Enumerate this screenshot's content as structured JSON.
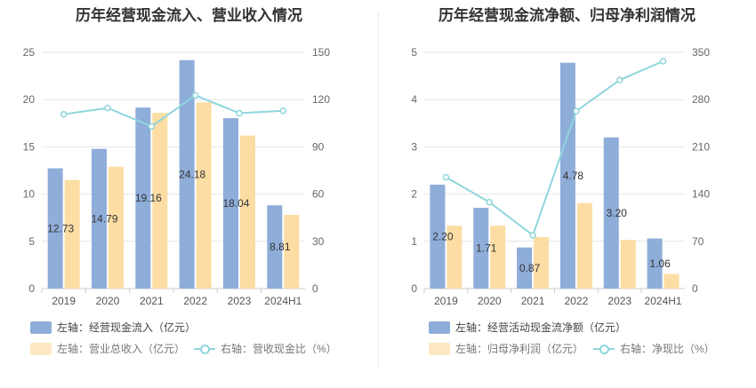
{
  "chart_data": [
    {
      "type": "bar",
      "title": "历年经营现金流入、营业收入情况",
      "categories": [
        "2019",
        "2020",
        "2021",
        "2022",
        "2023",
        "2024H1"
      ],
      "y_left": {
        "range": [
          0,
          25
        ],
        "ticks": [
          "0",
          "5",
          "10",
          "15",
          "20",
          "25"
        ]
      },
      "y_right": {
        "range": [
          0,
          150
        ],
        "ticks": [
          "0",
          "30",
          "60",
          "90",
          "120",
          "150"
        ]
      },
      "series": [
        {
          "name": "左轴：经营现金流入（亿元）",
          "type": "bar",
          "axis": "left",
          "color": "#8eadd9",
          "values": [
            12.73,
            14.79,
            19.16,
            24.18,
            18.04,
            8.81
          ],
          "labels": [
            "12.73",
            "14.79",
            "19.16",
            "24.18",
            "18.04",
            "8.81"
          ]
        },
        {
          "name": "左轴：营业总收入（亿元）",
          "type": "bar",
          "axis": "left",
          "color": "#fcdda3",
          "values": [
            11.5,
            12.9,
            18.6,
            19.7,
            16.2,
            7.8
          ]
        },
        {
          "name": "右轴：营收现金比（%）",
          "type": "line",
          "axis": "right",
          "color": "#8fd6dc",
          "values": [
            110.7,
            114.7,
            103.0,
            122.7,
            111.4,
            112.9
          ]
        }
      ],
      "grid": true,
      "legend": "bottom"
    },
    {
      "type": "bar",
      "title": "历年经营现金流净额、归母净利润情况",
      "categories": [
        "2019",
        "2020",
        "2021",
        "2022",
        "2023",
        "2024H1"
      ],
      "y_left": {
        "range": [
          0,
          5
        ],
        "ticks": [
          "0",
          "1",
          "2",
          "3",
          "4",
          "5"
        ]
      },
      "y_right": {
        "range": [
          0,
          350
        ],
        "ticks": [
          "0",
          "70",
          "140",
          "210",
          "280",
          "350"
        ]
      },
      "series": [
        {
          "name": "左轴：经营活动现金流净额（亿元）",
          "type": "bar",
          "axis": "left",
          "color": "#8eadd9",
          "values": [
            2.2,
            1.71,
            0.87,
            4.78,
            3.2,
            1.06
          ],
          "labels": [
            "2.20",
            "1.71",
            "0.87",
            "4.78",
            "3.20",
            "1.06"
          ]
        },
        {
          "name": "左轴：归母净利润（亿元）",
          "type": "bar",
          "axis": "left",
          "color": "#fcdda3",
          "values": [
            1.33,
            1.33,
            1.09,
            1.81,
            1.03,
            0.31
          ]
        },
        {
          "name": "右轴：净现比（%）",
          "type": "line",
          "axis": "right",
          "color": "#8fd6dc",
          "values": [
            165,
            128,
            79,
            263,
            309,
            337
          ]
        }
      ],
      "grid": true,
      "legend": "bottom"
    }
  ]
}
